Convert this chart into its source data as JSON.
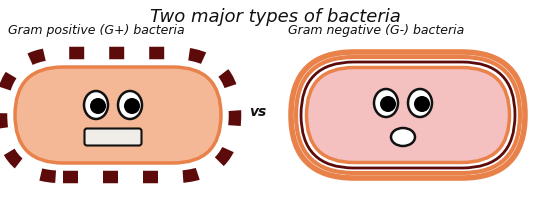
{
  "title": "Two major types of bacteria",
  "title_fontsize": 13,
  "label_left": "Gram positive (G+) bacteria",
  "label_right": "Gram negative (G-) bacteria",
  "vs_text": "vs",
  "label_fontsize": 9,
  "bg_color": "#ffffff",
  "gp_body_color": "#f5b896",
  "gp_body_border_color": "#e8824a",
  "gp_dot_color": "#5c0a0a",
  "gn_body_color": "#f5c0c0",
  "gn_outer_border_color": "#e8824a",
  "gn_inner_border_color": "#5c0a0a",
  "eye_white": "#ffffff",
  "eye_black": "#000000",
  "eye_outline": "#111111",
  "mouth_gp_color": "#f0ece8",
  "mouth_gn_color": "#ffffff",
  "mouth_outline": "#111111"
}
